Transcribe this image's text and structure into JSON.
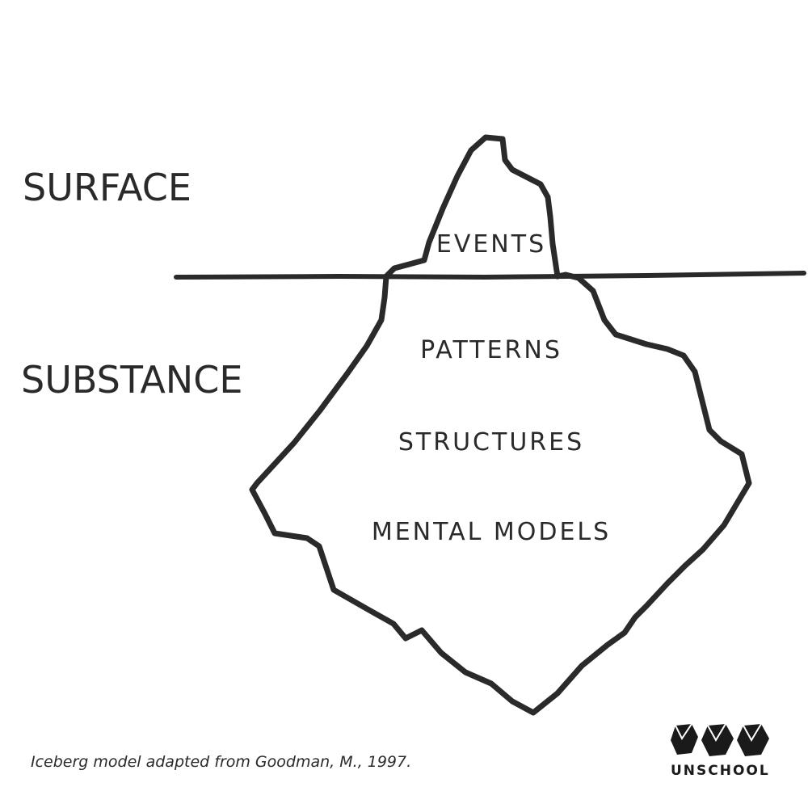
{
  "diagram": {
    "surface_label": "SURFACE",
    "substance_label": "SUBSTANCE",
    "layers": [
      "EVENTS",
      "PATTERNS",
      "STRUCTURES",
      "MENTAL MODELS"
    ]
  },
  "caption": "Iceberg model adapted from Goodman, M., 1997.",
  "logo": {
    "name": "UNSCHOOL",
    "icon": "three-gem-icon"
  },
  "colors": {
    "ink": "#2a2a2a",
    "background": "#ffffff"
  }
}
